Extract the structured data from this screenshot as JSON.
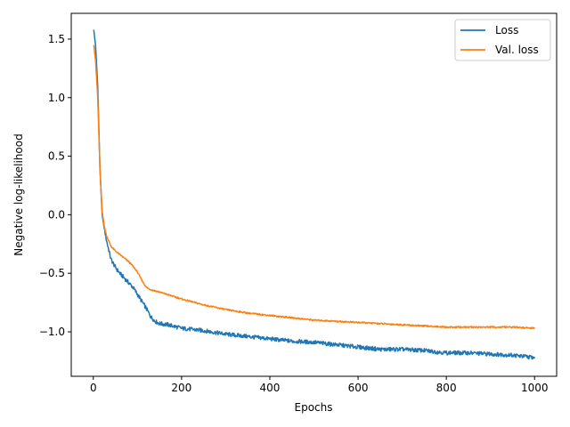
{
  "chart_data": {
    "type": "line",
    "title": "",
    "xlabel": "Epochs",
    "ylabel": "Negative log-likelihood",
    "xlim": [
      -50,
      1050
    ],
    "ylim": [
      -1.38,
      1.72
    ],
    "xticks": [
      0,
      200,
      400,
      600,
      800,
      1000
    ],
    "yticks": [
      -1.0,
      -0.5,
      0.0,
      0.5,
      1.0,
      1.5
    ],
    "xtick_labels": [
      "0",
      "200",
      "400",
      "600",
      "800",
      "1000"
    ],
    "ytick_labels": [
      "−1.0",
      "−0.5",
      "0.0",
      "0.5",
      "1.0",
      "1.5"
    ],
    "grid": false,
    "legend_position": "top-right",
    "series": [
      {
        "name": "Loss",
        "color": "#1f77b4",
        "x": [
          1,
          5,
          10,
          15,
          20,
          25,
          30,
          40,
          50,
          60,
          70,
          80,
          90,
          100,
          110,
          120,
          130,
          140,
          150,
          170,
          200,
          250,
          300,
          350,
          400,
          450,
          500,
          550,
          600,
          650,
          700,
          750,
          800,
          850,
          900,
          950,
          1000
        ],
        "values": [
          1.58,
          1.45,
          1.1,
          0.4,
          0.0,
          -0.12,
          -0.22,
          -0.38,
          -0.45,
          -0.5,
          -0.54,
          -0.58,
          -0.62,
          -0.68,
          -0.74,
          -0.8,
          -0.87,
          -0.91,
          -0.93,
          -0.94,
          -0.97,
          -0.99,
          -1.02,
          -1.04,
          -1.06,
          -1.08,
          -1.09,
          -1.11,
          -1.13,
          -1.15,
          -1.15,
          -1.16,
          -1.18,
          -1.18,
          -1.19,
          -1.2,
          -1.22
        ]
      },
      {
        "name": "Val. loss",
        "color": "#ff7f0e",
        "x": [
          1,
          5,
          10,
          15,
          20,
          25,
          30,
          40,
          50,
          60,
          70,
          80,
          90,
          100,
          110,
          120,
          130,
          150,
          200,
          250,
          300,
          350,
          400,
          450,
          500,
          550,
          600,
          650,
          700,
          750,
          800,
          850,
          900,
          950,
          1000
        ],
        "values": [
          1.45,
          1.32,
          1.0,
          0.4,
          0.03,
          -0.1,
          -0.18,
          -0.27,
          -0.31,
          -0.34,
          -0.37,
          -0.4,
          -0.44,
          -0.49,
          -0.56,
          -0.62,
          -0.64,
          -0.66,
          -0.72,
          -0.77,
          -0.81,
          -0.84,
          -0.86,
          -0.88,
          -0.9,
          -0.91,
          -0.92,
          -0.93,
          -0.94,
          -0.95,
          -0.96,
          -0.96,
          -0.96,
          -0.96,
          -0.97
        ]
      }
    ]
  }
}
